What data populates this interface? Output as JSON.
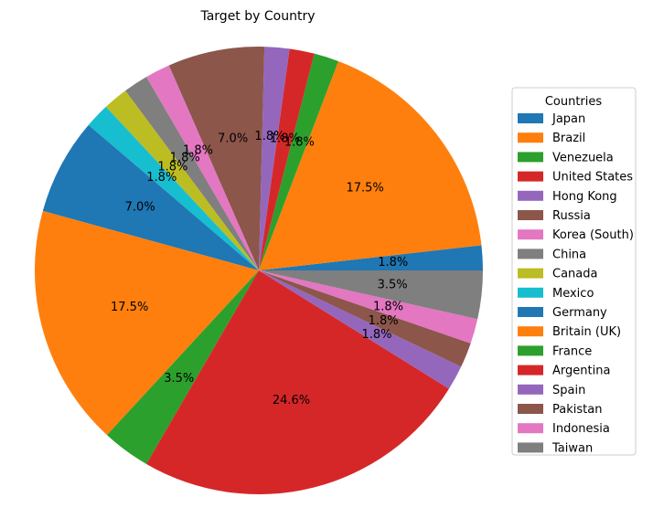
{
  "chart_data": {
    "type": "pie",
    "title": "Target by Country",
    "legend_title": "Countries",
    "legend_position": "right",
    "start_angle_deg": 0,
    "direction": "counterclockwise",
    "slices": [
      {
        "label": "Japan",
        "percent": 1.8,
        "color": "#1f77b4"
      },
      {
        "label": "Brazil",
        "percent": 17.5,
        "color": "#ff7f0e"
      },
      {
        "label": "Venezuela",
        "percent": 1.8,
        "color": "#2ca02c"
      },
      {
        "label": "United States",
        "percent": 1.8,
        "color": "#d62728"
      },
      {
        "label": "Hong Kong",
        "percent": 1.8,
        "color": "#9467bd"
      },
      {
        "label": "Russia",
        "percent": 7.0,
        "color": "#8c564b"
      },
      {
        "label": "Korea (South)",
        "percent": 1.8,
        "color": "#e377c2"
      },
      {
        "label": "China",
        "percent": 1.8,
        "color": "#7f7f7f"
      },
      {
        "label": "Canada",
        "percent": 1.8,
        "color": "#bcbd22"
      },
      {
        "label": "Mexico",
        "percent": 1.8,
        "color": "#17becf"
      },
      {
        "label": "Germany",
        "percent": 7.0,
        "color": "#1f77b4"
      },
      {
        "label": "Britain (UK)",
        "percent": 17.5,
        "color": "#ff7f0e"
      },
      {
        "label": "France",
        "percent": 3.5,
        "color": "#2ca02c"
      },
      {
        "label": "Argentina",
        "percent": 24.6,
        "color": "#d62728"
      },
      {
        "label": "Spain",
        "percent": 1.8,
        "color": "#9467bd"
      },
      {
        "label": "Pakistan",
        "percent": 1.8,
        "color": "#8c564b"
      },
      {
        "label": "Indonesia",
        "percent": 1.8,
        "color": "#e377c2"
      },
      {
        "label": "Taiwan",
        "percent": 3.5,
        "color": "#7f7f7f"
      }
    ]
  }
}
